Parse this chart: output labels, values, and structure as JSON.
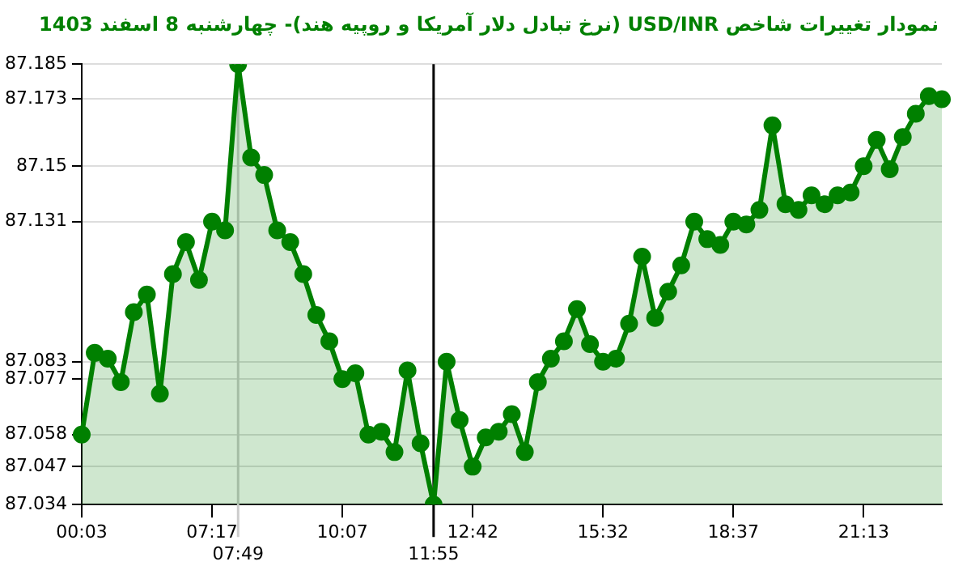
{
  "chart_data": {
    "type": "area",
    "title": "نمودار تغییرات شاخص USD/INR (نرخ تبادل دلار آمریکا و روپیه هند)- چهارشنبه  8 اسفند 1403",
    "categories": [
      "00:03",
      null,
      null,
      null,
      null,
      null,
      null,
      null,
      null,
      null,
      "07:17",
      null,
      "07:49",
      null,
      null,
      null,
      null,
      null,
      null,
      null,
      "10:07",
      null,
      null,
      null,
      null,
      null,
      null,
      "11:55",
      null,
      null,
      "12:42",
      null,
      null,
      null,
      null,
      null,
      null,
      null,
      null,
      null,
      "15:32",
      null,
      null,
      null,
      null,
      null,
      null,
      null,
      null,
      null,
      "18:37",
      null,
      null,
      null,
      null,
      null,
      null,
      null,
      null,
      null,
      "21:13",
      null,
      null,
      null,
      null,
      null,
      null
    ],
    "series": [
      {
        "color": "#008000",
        "values": [
          87.058,
          87.086,
          87.084,
          87.076,
          87.1,
          87.106,
          87.072,
          87.113,
          87.124,
          87.111,
          87.131,
          87.128,
          87.185,
          87.153,
          87.147,
          87.128,
          87.124,
          87.113,
          87.099,
          87.09,
          87.077,
          87.079,
          87.058,
          87.059,
          87.052,
          87.08,
          87.055,
          87.034,
          87.083,
          87.063,
          87.047,
          87.057,
          87.059,
          87.065,
          87.052,
          87.076,
          87.084,
          87.09,
          87.101,
          87.089,
          87.083,
          87.084,
          87.096,
          87.119,
          87.098,
          87.107,
          87.116,
          87.131,
          87.125,
          87.123,
          87.131,
          87.13,
          87.135,
          87.164,
          87.137,
          87.135,
          87.14,
          87.137,
          87.14,
          87.141,
          87.15,
          87.159,
          87.149,
          87.16,
          87.168,
          87.174,
          87.173
        ]
      }
    ],
    "ylim": [
      87.034,
      87.185
    ],
    "yticks": [
      87.034,
      87.047,
      87.058,
      87.077,
      87.083,
      87.131,
      87.15,
      87.173,
      87.185
    ],
    "ref_lines": [
      {
        "axis": "x",
        "value": "07:49",
        "color": "#cccccc"
      },
      {
        "axis": "x",
        "value": "11:55",
        "color": "#000000"
      }
    ],
    "grid": "y",
    "marker": "circle",
    "line_style": "solid",
    "legend": false
  }
}
